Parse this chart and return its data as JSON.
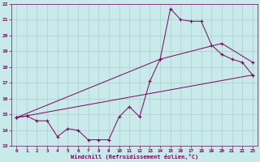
{
  "xlabel": "Windchill (Refroidissement éolien,°C)",
  "bg_color": "#c8eaea",
  "line_color": "#800060",
  "grid_color": "#b0cccc",
  "ylim": [
    13,
    22
  ],
  "xlim": [
    -0.5,
    23.5
  ],
  "yticks": [
    13,
    14,
    15,
    16,
    17,
    18,
    19,
    20,
    21,
    22
  ],
  "xticks": [
    0,
    1,
    2,
    3,
    4,
    5,
    6,
    7,
    8,
    9,
    10,
    11,
    12,
    13,
    14,
    15,
    16,
    17,
    18,
    19,
    20,
    21,
    22,
    23
  ],
  "series1_x": [
    0,
    1,
    2,
    3,
    4,
    5,
    6,
    7,
    8,
    9,
    10,
    11,
    12,
    13,
    14,
    15,
    16,
    17,
    18,
    19,
    20,
    21,
    22,
    23
  ],
  "series1_y": [
    14.8,
    14.9,
    14.6,
    14.6,
    13.6,
    14.1,
    14.0,
    13.4,
    13.4,
    13.4,
    14.85,
    15.5,
    14.85,
    17.1,
    18.5,
    21.7,
    21.0,
    20.9,
    20.9,
    19.4,
    18.8,
    18.5,
    18.3,
    17.5
  ],
  "series2_x": [
    0,
    23
  ],
  "series2_y": [
    14.8,
    17.5
  ],
  "series3_x": [
    0,
    14,
    20,
    23
  ],
  "series3_y": [
    14.8,
    18.5,
    19.5,
    18.3
  ]
}
